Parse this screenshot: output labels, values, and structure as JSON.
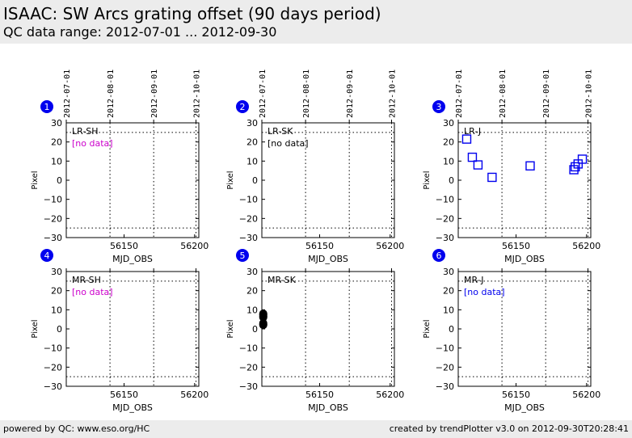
{
  "header": {
    "title": "ISAAC: SW Arcs grating offset (90 days period)",
    "subtitle": "QC data range: 2012-07-01 ... 2012-09-30"
  },
  "footer": {
    "left": "powered by QC: www.eso.org/HC",
    "right": "created by trendPlotter v3.0 on 2012-09-30T20:28:41"
  },
  "colors": {
    "header_bg": "#ececec",
    "badge": "#0000ee",
    "no_data_magenta": "#cc00cc",
    "no_data_black": "#000000",
    "no_data_blue": "#0000ee",
    "series_open_square": "#0000ee",
    "series_filled_circle": "#000000"
  },
  "chart_data": [
    {
      "type": "scatter",
      "panel": "1",
      "label": "LR-SH",
      "no_data_text": "[no data]",
      "no_data_color": "#cc00cc",
      "xlabel": "MJD_OBS",
      "ylabel": "Pixel",
      "xlim": [
        56109,
        56203
      ],
      "ylim": [
        -30,
        30
      ],
      "xticks": [
        56150,
        56200
      ],
      "yticks": [
        30,
        20,
        10,
        0,
        -10,
        -20,
        -30
      ],
      "top_ticks": [
        [
          "2012-07-01",
          56109
        ],
        [
          "2012-08-01",
          56140
        ],
        [
          "2012-09-01",
          56171
        ],
        [
          "2012-10-01",
          56201
        ]
      ],
      "hlines": [
        25,
        -25
      ],
      "points": []
    },
    {
      "type": "scatter",
      "panel": "2",
      "label": "LR-SK",
      "no_data_text": "[no data]",
      "no_data_color": "#000000",
      "xlabel": "MJD_OBS",
      "ylabel": "Pixel",
      "xlim": [
        56109,
        56203
      ],
      "ylim": [
        -30,
        30
      ],
      "xticks": [
        56150,
        56200
      ],
      "yticks": [
        30,
        20,
        10,
        0,
        -10,
        -20,
        -30
      ],
      "top_ticks": [
        [
          "2012-07-01",
          56109
        ],
        [
          "2012-08-01",
          56140
        ],
        [
          "2012-09-01",
          56171
        ],
        [
          "2012-10-01",
          56201
        ]
      ],
      "hlines": [
        25,
        -25
      ],
      "points": []
    },
    {
      "type": "scatter",
      "panel": "3",
      "label": "LR-J",
      "no_data_text": "",
      "no_data_color": "#0000ee",
      "xlabel": "MJD_OBS",
      "ylabel": "Pixel",
      "xlim": [
        56109,
        56203
      ],
      "ylim": [
        -30,
        30
      ],
      "xticks": [
        56150,
        56200
      ],
      "yticks": [
        30,
        20,
        10,
        0,
        -10,
        -20,
        -30
      ],
      "top_ticks": [
        [
          "2012-07-01",
          56109
        ],
        [
          "2012-08-01",
          56140
        ],
        [
          "2012-09-01",
          56171
        ],
        [
          "2012-10-01",
          56201
        ]
      ],
      "hlines": [
        25,
        -25
      ],
      "marker": "open-square",
      "marker_color": "#0000ee",
      "points": [
        [
          56115,
          21.5
        ],
        [
          56119,
          12
        ],
        [
          56123,
          8
        ],
        [
          56133,
          1.5
        ],
        [
          56160,
          7.5
        ],
        [
          56191,
          5.5
        ],
        [
          56192,
          7
        ],
        [
          56194,
          8.5
        ],
        [
          56197,
          11
        ]
      ]
    },
    {
      "type": "scatter",
      "panel": "4",
      "label": "MR-SH",
      "no_data_text": "[no data]",
      "no_data_color": "#cc00cc",
      "xlabel": "MJD_OBS",
      "ylabel": "Pixel",
      "xlim": [
        56109,
        56203
      ],
      "ylim": [
        -30,
        30
      ],
      "xticks": [
        56150,
        56200
      ],
      "yticks": [
        30,
        20,
        10,
        0,
        -10,
        -20,
        -30
      ],
      "hlines": [
        25,
        -25
      ],
      "points": []
    },
    {
      "type": "scatter",
      "panel": "5",
      "label": "MR-SK",
      "no_data_text": "",
      "no_data_color": "#000000",
      "xlabel": "MJD_OBS",
      "ylabel": "Pixel",
      "xlim": [
        56109,
        56203
      ],
      "ylim": [
        -30,
        30
      ],
      "xticks": [
        56150,
        56200
      ],
      "yticks": [
        30,
        20,
        10,
        0,
        -10,
        -20,
        -30
      ],
      "hlines": [
        25,
        -25
      ],
      "marker": "filled-circle",
      "marker_color": "#000000",
      "points": [
        [
          56110,
          8
        ],
        [
          56110,
          7.5
        ],
        [
          56110,
          7
        ],
        [
          56110,
          6.5
        ],
        [
          56110,
          6
        ],
        [
          56110,
          3
        ],
        [
          56110,
          2.5
        ],
        [
          56110,
          2
        ]
      ]
    },
    {
      "type": "scatter",
      "panel": "6",
      "label": "MR-J",
      "no_data_text": "[no data]",
      "no_data_color": "#0000ee",
      "xlabel": "MJD_OBS",
      "ylabel": "Pixel",
      "xlim": [
        56109,
        56203
      ],
      "ylim": [
        -30,
        30
      ],
      "xticks": [
        56150,
        56200
      ],
      "yticks": [
        30,
        20,
        10,
        0,
        -10,
        -20,
        -30
      ],
      "hlines": [
        25,
        -25
      ],
      "points": []
    }
  ]
}
